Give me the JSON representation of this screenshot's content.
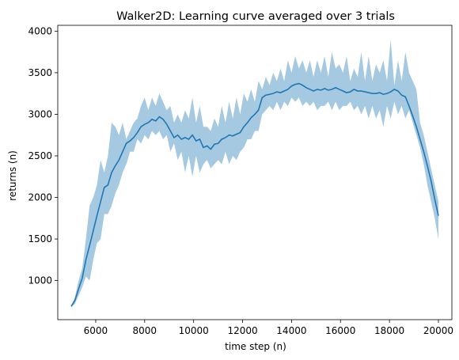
{
  "chart_data": {
    "type": "line",
    "title": "Walker2D: Learning curve averaged over 3 trials",
    "xlabel": "time step (n)",
    "ylabel": "returns (n)",
    "xlim": [
      4450,
      20550
    ],
    "ylim": [
      530,
      4070
    ],
    "xticks": [
      6000,
      8000,
      10000,
      12000,
      14000,
      16000,
      18000,
      20000
    ],
    "yticks": [
      1000,
      1500,
      2000,
      2500,
      3000,
      3500,
      4000
    ],
    "grid": false,
    "legend": "none",
    "colors": {
      "line": "#1f77b4",
      "band": "#1f77b4"
    },
    "series": [
      {
        "x": [
          5000,
          5150,
          5300,
          5450,
          5600,
          5750,
          5900,
          6050,
          6200,
          6350,
          6500,
          6650,
          6800,
          6950,
          7100,
          7250,
          7400,
          7550,
          7700,
          7850,
          8000,
          8150,
          8300,
          8450,
          8600,
          8750,
          8900,
          9050,
          9200,
          9350,
          9500,
          9650,
          9800,
          9950,
          10100,
          10250,
          10400,
          10550,
          10700,
          10850,
          11000,
          11150,
          11300,
          11450,
          11600,
          11750,
          11900,
          12050,
          12200,
          12350,
          12500,
          12650,
          12800,
          12950,
          13100,
          13250,
          13400,
          13550,
          13700,
          13850,
          14000,
          14150,
          14300,
          14450,
          14600,
          14750,
          14900,
          15050,
          15200,
          15350,
          15500,
          15650,
          15800,
          15950,
          16100,
          16250,
          16400,
          16550,
          16700,
          16850,
          17000,
          17150,
          17300,
          17450,
          17600,
          17750,
          17900,
          18050,
          18200,
          18350,
          18500,
          18650,
          18800,
          18950,
          19100,
          19250,
          19400,
          19550,
          19700,
          19850,
          20000
        ],
        "mean": [
          690,
          760,
          900,
          1030,
          1250,
          1420,
          1600,
          1780,
          1950,
          2120,
          2150,
          2300,
          2380,
          2450,
          2550,
          2650,
          2680,
          2720,
          2780,
          2850,
          2880,
          2900,
          2940,
          2920,
          2970,
          2940,
          2880,
          2800,
          2720,
          2750,
          2700,
          2720,
          2700,
          2750,
          2680,
          2700,
          2600,
          2620,
          2580,
          2640,
          2650,
          2700,
          2720,
          2750,
          2740,
          2760,
          2780,
          2850,
          2900,
          2960,
          3000,
          3050,
          3200,
          3230,
          3240,
          3250,
          3270,
          3260,
          3280,
          3300,
          3340,
          3360,
          3370,
          3350,
          3320,
          3300,
          3280,
          3300,
          3290,
          3310,
          3290,
          3300,
          3320,
          3300,
          3280,
          3260,
          3270,
          3300,
          3280,
          3280,
          3270,
          3260,
          3250,
          3250,
          3260,
          3240,
          3250,
          3270,
          3300,
          3280,
          3230,
          3210,
          3100,
          2980,
          2850,
          2700,
          2550,
          2380,
          2200,
          1980,
          1780
        ],
        "upper": [
          700,
          800,
          1000,
          1150,
          1500,
          1900,
          2000,
          2150,
          2450,
          2300,
          2500,
          2900,
          2850,
          2750,
          2900,
          2700,
          2800,
          2900,
          2950,
          3100,
          3200,
          3050,
          3200,
          3100,
          3250,
          3150,
          3050,
          3100,
          2900,
          3000,
          2900,
          3050,
          2950,
          3200,
          2900,
          3100,
          2850,
          2850,
          2800,
          2950,
          2850,
          3100,
          2900,
          3150,
          2950,
          3200,
          3000,
          3250,
          3150,
          3300,
          3150,
          3400,
          3300,
          3450,
          3350,
          3500,
          3400,
          3550,
          3400,
          3650,
          3500,
          3700,
          3550,
          3650,
          3500,
          3650,
          3450,
          3650,
          3500,
          3700,
          3450,
          3750,
          3550,
          3600,
          3500,
          3700,
          3400,
          3550,
          3450,
          3750,
          3400,
          3700,
          3400,
          3600,
          3500,
          3650,
          3400,
          3900,
          3350,
          3650,
          3400,
          3750,
          3500,
          3400,
          3300,
          2900,
          2750,
          2550,
          2350,
          2150,
          1950
        ],
        "lower": [
          680,
          720,
          820,
          920,
          1050,
          1000,
          1250,
          1450,
          1500,
          1800,
          1800,
          1900,
          2050,
          2150,
          2300,
          2400,
          2550,
          2550,
          2700,
          2650,
          2750,
          2700,
          2800,
          2750,
          2800,
          2700,
          2750,
          2550,
          2650,
          2450,
          2550,
          2300,
          2500,
          2250,
          2500,
          2300,
          2400,
          2450,
          2350,
          2400,
          2450,
          2400,
          2550,
          2400,
          2500,
          2450,
          2550,
          2600,
          2700,
          2700,
          2800,
          2800,
          3000,
          3050,
          3100,
          3050,
          3150,
          3050,
          3150,
          3100,
          3200,
          3150,
          3200,
          3100,
          3150,
          3100,
          3150,
          3050,
          3100,
          3100,
          3150,
          3050,
          3150,
          3050,
          3100,
          3100,
          3150,
          3050,
          3100,
          3000,
          3100,
          2950,
          3100,
          2950,
          3050,
          2850,
          3100,
          2950,
          3150,
          3000,
          3100,
          2950,
          3050,
          2900,
          2750,
          2600,
          2400,
          2150,
          1950,
          1750,
          1500
        ]
      }
    ]
  }
}
